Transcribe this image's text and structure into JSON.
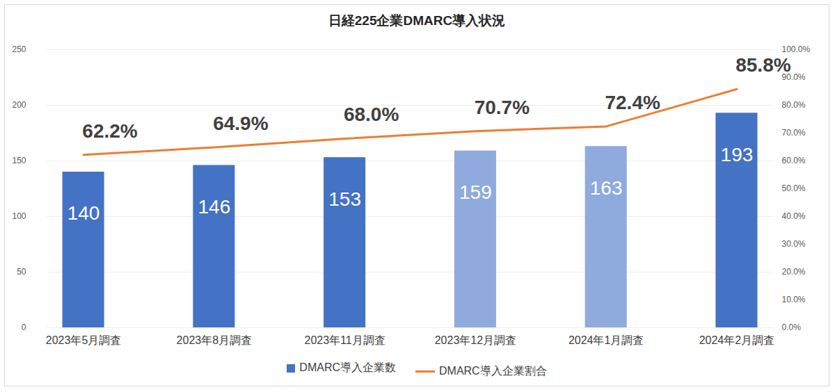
{
  "chart_data": {
    "type": "bar",
    "title": "日経225企業DMARC導入状況",
    "categories": [
      "2023年5月調査",
      "2023年8月調査",
      "2023年11月調査",
      "2023年12月調査",
      "2024年1月調査",
      "2024年2月調査"
    ],
    "series": [
      {
        "name": "DMARC導入企業数",
        "type": "bar",
        "color": "#4472c4",
        "colors": [
          "#4472c4",
          "#4472c4",
          "#4472c4",
          "#8faadc",
          "#8faadc",
          "#4472c4"
        ],
        "values": [
          140,
          146,
          153,
          159,
          163,
          193
        ]
      },
      {
        "name": "DMARC導入企業割合",
        "type": "line",
        "axis": "y2",
        "color": "#ed7d31",
        "values": [
          62.2,
          64.9,
          68.0,
          70.7,
          72.4,
          85.8
        ],
        "value_labels": [
          "62.2%",
          "64.9%",
          "68.0%",
          "70.7%",
          "72.4%",
          "85.8%"
        ]
      }
    ],
    "ylim": [
      0,
      250
    ],
    "yticks": [
      0,
      50,
      100,
      150,
      200,
      250
    ],
    "y2lim": [
      0,
      100
    ],
    "y2ticks": [
      {
        "value": 0,
        "label": "0.0%"
      },
      {
        "value": 10,
        "label": "10.0%"
      },
      {
        "value": 20,
        "label": "20.0%"
      },
      {
        "value": 30,
        "label": "30.0%"
      },
      {
        "value": 40,
        "label": "40.0%"
      },
      {
        "value": 50,
        "label": "50.0%"
      },
      {
        "value": 60,
        "label": "60.0%"
      },
      {
        "value": 70,
        "label": "70.0%"
      },
      {
        "value": 80,
        "label": "80.0%"
      },
      {
        "value": 90,
        "label": "90.0%"
      },
      {
        "value": 100,
        "label": "100.0%"
      }
    ],
    "grid": true,
    "data_labels": true,
    "legend": "bottom"
  }
}
